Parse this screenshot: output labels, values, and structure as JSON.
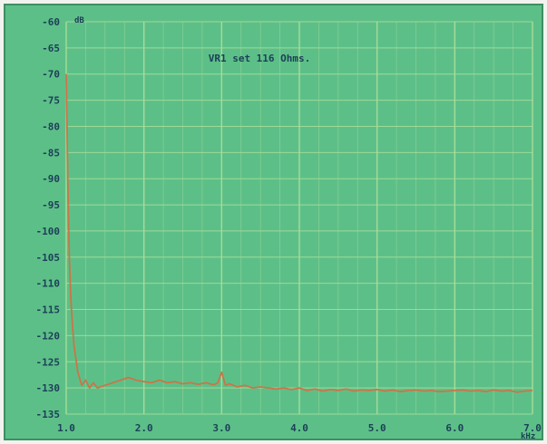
{
  "chart_data": {
    "type": "line",
    "title": "VR1 set 116 Ohms.",
    "ylabel": "dB",
    "xlabel": "kHz",
    "xlim": [
      1.0,
      7.0
    ],
    "ylim": [
      -135,
      -60
    ],
    "xticks": [
      "1.0",
      "2.0",
      "3.0",
      "4.0",
      "5.0",
      "6.0",
      "7.0"
    ],
    "yticks": [
      "-60",
      "-65",
      "-70",
      "-75",
      "-80",
      "-85",
      "-90",
      "-95",
      "-100",
      "-105",
      "-110",
      "-115",
      "-120",
      "-125",
      "-130",
      "-135"
    ],
    "grid": true,
    "series": [
      {
        "color": "#c9764a",
        "x": [
          1.0,
          1.02,
          1.04,
          1.06,
          1.08,
          1.1,
          1.12,
          1.15,
          1.2,
          1.25,
          1.3,
          1.35,
          1.4,
          1.5,
          1.6,
          1.7,
          1.8,
          1.9,
          2.0,
          2.1,
          2.2,
          2.3,
          2.4,
          2.5,
          2.6,
          2.7,
          2.8,
          2.9,
          2.95,
          3.0,
          3.05,
          3.1,
          3.2,
          3.3,
          3.4,
          3.5,
          3.6,
          3.7,
          3.8,
          3.9,
          4.0,
          4.1,
          4.2,
          4.3,
          4.4,
          4.5,
          4.6,
          4.7,
          4.8,
          4.9,
          5.0,
          5.1,
          5.2,
          5.3,
          5.4,
          5.5,
          5.6,
          5.7,
          5.8,
          5.9,
          6.0,
          6.1,
          6.2,
          6.3,
          6.4,
          6.5,
          6.6,
          6.7,
          6.8,
          6.9,
          7.0
        ],
        "y": [
          -70,
          -90,
          -105,
          -113,
          -118,
          -122,
          -124,
          -127,
          -129.5,
          -128.5,
          -130,
          -129,
          -130,
          -129.5,
          -129,
          -128.5,
          -128,
          -128.5,
          -128.8,
          -129,
          -128.5,
          -129,
          -128.8,
          -129.2,
          -129,
          -129.3,
          -129,
          -129.4,
          -129,
          -127,
          -129.5,
          -129.2,
          -129.8,
          -129.5,
          -130,
          -129.8,
          -130,
          -130.2,
          -130,
          -130.3,
          -130,
          -130.5,
          -130.2,
          -130.6,
          -130.3,
          -130.5,
          -130.2,
          -130.6,
          -130.4,
          -130.5,
          -130.3,
          -130.6,
          -130.4,
          -130.7,
          -130.5,
          -130.4,
          -130.6,
          -130.5,
          -130.7,
          -130.6,
          -130.5,
          -130.4,
          -130.6,
          -130.5,
          -130.7,
          -130.4,
          -130.6,
          -130.5,
          -130.8,
          -130.6,
          -130.5
        ]
      }
    ]
  },
  "colors": {
    "background": "#5dbf88",
    "grid": "#a9df9a",
    "trace": "#c9764a",
    "text": "#1c3f58"
  }
}
